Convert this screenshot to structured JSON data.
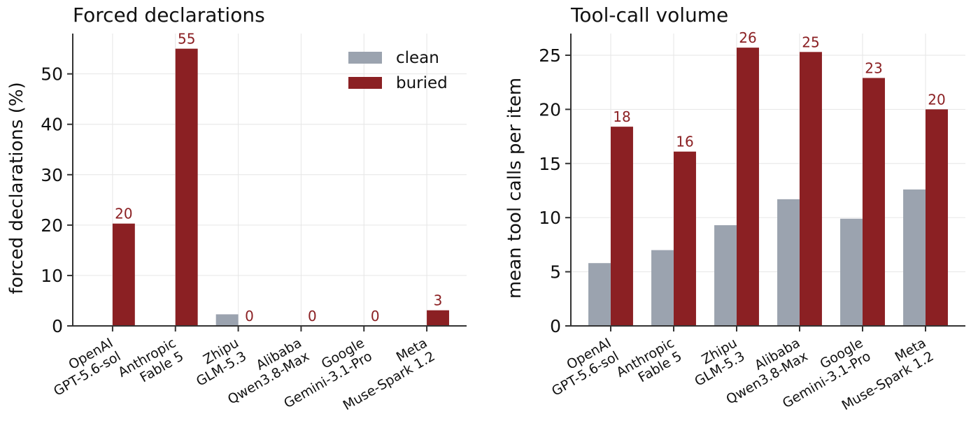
{
  "colors": {
    "clean": "#9ba3af",
    "buried": "#8b2023",
    "label": "#8b2023",
    "grid": "#e6e6e6",
    "axis": "#333333",
    "text": "#111111"
  },
  "legend": {
    "placement": "upper-right",
    "entries": [
      "clean",
      "buried"
    ]
  },
  "chart_data": [
    {
      "type": "bar",
      "title": "Forced declarations",
      "xlabel": "",
      "ylabel": "forced declarations (%)",
      "ylim": [
        0,
        58
      ],
      "yticks": [
        0,
        10,
        20,
        30,
        40,
        50
      ],
      "grid": true,
      "categories": [
        "OpenAI\nGPT-5.6-sol",
        "Anthropic\nFable 5",
        "Zhipu\nGLM-5.3",
        "Alibaba\nQwen3.8-Max",
        "Google\nGemini-3.1-Pro",
        "Meta\nMuse-Spark 1.2"
      ],
      "series": [
        {
          "name": "clean",
          "values": [
            0,
            0,
            2.3,
            0,
            0,
            0
          ]
        },
        {
          "name": "buried",
          "values": [
            20.3,
            55,
            0,
            0,
            0,
            3.1
          ]
        }
      ],
      "data_labels": [
        "20",
        "55",
        "0",
        "0",
        "0",
        "3"
      ]
    },
    {
      "type": "bar",
      "title": "Tool-call volume",
      "xlabel": "",
      "ylabel": "mean tool calls per item",
      "ylim": [
        0,
        27
      ],
      "yticks": [
        0,
        5,
        10,
        15,
        20,
        25
      ],
      "grid": true,
      "categories": [
        "OpenAI\nGPT-5.6-sol",
        "Anthropic\nFable 5",
        "Zhipu\nGLM-5.3",
        "Alibaba\nQwen3.8-Max",
        "Google\nGemini-3.1-Pro",
        "Meta\nMuse-Spark 1.2"
      ],
      "series": [
        {
          "name": "clean",
          "values": [
            5.8,
            7.0,
            9.3,
            11.7,
            9.9,
            12.6
          ]
        },
        {
          "name": "buried",
          "values": [
            18.4,
            16.1,
            25.7,
            25.3,
            22.9,
            20.0
          ]
        }
      ],
      "data_labels": [
        "18",
        "16",
        "26",
        "25",
        "23",
        "20"
      ]
    }
  ]
}
